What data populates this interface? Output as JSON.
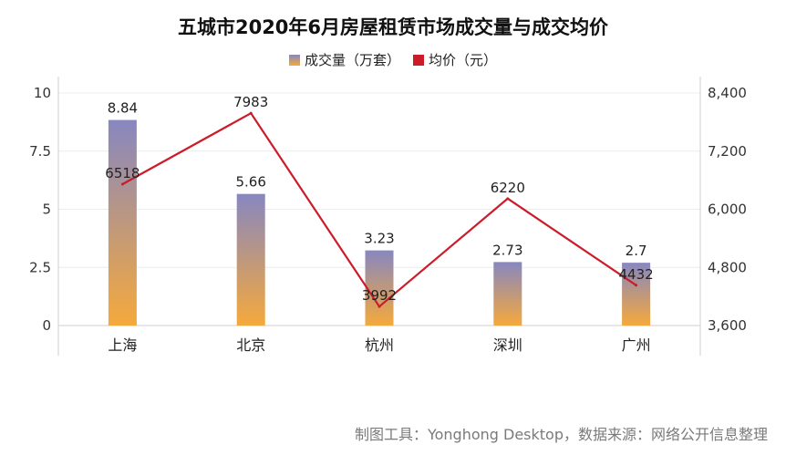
{
  "title": "五城市2020年6月房屋租赁市场成交量与成交均价",
  "legend": {
    "bar_label": "成交量（万套）",
    "line_label": "均价（元）"
  },
  "footer": "制图工具：Yonghong Desktop，数据来源：网络公开信息整理",
  "colors": {
    "bar_top": "#8787c0",
    "bar_bottom": "#f5a93c",
    "line": "#cc1c2a"
  },
  "chart_data": {
    "type": "bar",
    "categories": [
      "上海",
      "北京",
      "杭州",
      "深圳",
      "广州"
    ],
    "series": [
      {
        "name": "成交量（万套）",
        "type": "bar",
        "axis": "left",
        "values": [
          8.84,
          5.66,
          3.23,
          2.73,
          2.7
        ]
      },
      {
        "name": "均价（元）",
        "type": "line",
        "axis": "right",
        "values": [
          6518,
          7983,
          3992,
          6220,
          4432
        ]
      }
    ],
    "y_left": {
      "ylim": [
        0,
        10
      ],
      "ticks": [
        "0",
        "2.5",
        "5",
        "7.5",
        "10"
      ],
      "tick_values": [
        0,
        2.5,
        5,
        7.5,
        10
      ]
    },
    "y_right": {
      "ylim": [
        3600,
        8400
      ],
      "ticks": [
        "3,600",
        "4,800",
        "6,000",
        "7,200",
        "8,400"
      ],
      "tick_values": [
        3600,
        4800,
        6000,
        7200,
        8400
      ]
    },
    "grid": true,
    "legend_position": "top-center"
  }
}
